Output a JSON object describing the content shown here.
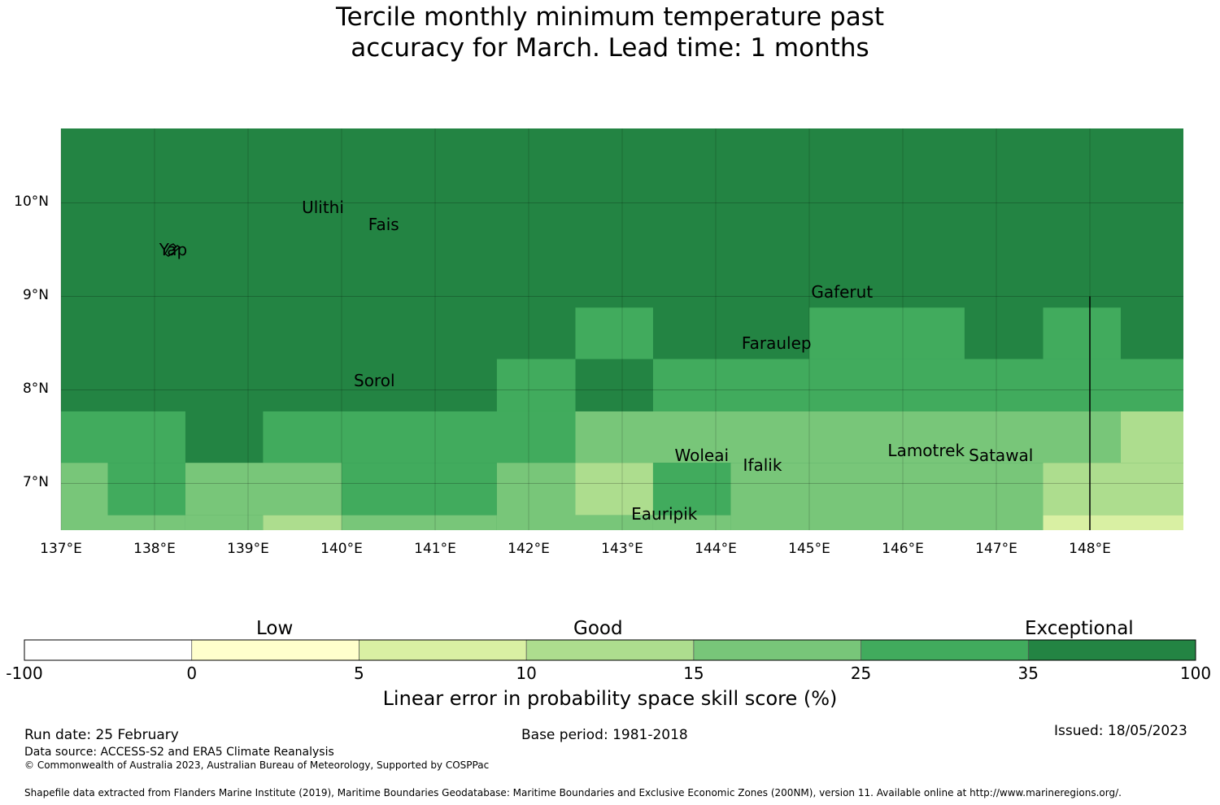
{
  "title": {
    "line1": "Tercile monthly minimum temperature past",
    "line2": "accuracy for March. Lead time: 1 months"
  },
  "map": {
    "lon_range": [
      137,
      149
    ],
    "lat_range": [
      6.5,
      10.8
    ],
    "lat_ticks": [
      {
        "value": 10,
        "label": "10°N"
      },
      {
        "value": 9,
        "label": "9°N"
      },
      {
        "value": 8,
        "label": "8°N"
      },
      {
        "value": 7,
        "label": "7°N"
      }
    ],
    "lon_ticks": [
      {
        "value": 137,
        "label": "137°E"
      },
      {
        "value": 138,
        "label": "138°E"
      },
      {
        "value": 139,
        "label": "139°E"
      },
      {
        "value": 140,
        "label": "140°E"
      },
      {
        "value": 141,
        "label": "141°E"
      },
      {
        "value": 142,
        "label": "142°E"
      },
      {
        "value": 143,
        "label": "143°E"
      },
      {
        "value": 144,
        "label": "144°E"
      },
      {
        "value": 145,
        "label": "145°E"
      },
      {
        "value": 146,
        "label": "146°E"
      },
      {
        "value": 147,
        "label": "147°E"
      },
      {
        "value": 148,
        "label": "148°E"
      }
    ],
    "background_class": 6,
    "cells": [
      {
        "lon0": 142.5,
        "lon1": 143.33,
        "lat0": 8.33,
        "lat1": 8.88,
        "class": 5
      },
      {
        "lon0": 145.0,
        "lon1": 146.66,
        "lat0": 8.33,
        "lat1": 8.88,
        "class": 5
      },
      {
        "lon0": 147.5,
        "lon1": 148.33,
        "lat0": 8.33,
        "lat1": 8.88,
        "class": 5
      },
      {
        "lon0": 141.66,
        "lon1": 142.5,
        "lat0": 7.77,
        "lat1": 8.33,
        "class": 5
      },
      {
        "lon0": 143.33,
        "lon1": 149.0,
        "lat0": 7.77,
        "lat1": 8.33,
        "class": 5
      },
      {
        "lon0": 137.0,
        "lon1": 138.33,
        "lat0": 7.22,
        "lat1": 7.77,
        "class": 5
      },
      {
        "lon0": 139.16,
        "lon1": 142.5,
        "lat0": 7.22,
        "lat1": 7.77,
        "class": 5
      },
      {
        "lon0": 142.5,
        "lon1": 148.33,
        "lat0": 7.22,
        "lat1": 7.77,
        "class": 4
      },
      {
        "lon0": 148.33,
        "lon1": 149.0,
        "lat0": 7.22,
        "lat1": 7.77,
        "class": 3
      },
      {
        "lon0": 137.0,
        "lon1": 137.5,
        "lat0": 6.5,
        "lat1": 7.22,
        "class": 4
      },
      {
        "lon0": 137.5,
        "lon1": 138.33,
        "lat0": 6.66,
        "lat1": 7.22,
        "class": 5
      },
      {
        "lon0": 137.5,
        "lon1": 138.33,
        "lat0": 6.5,
        "lat1": 6.66,
        "class": 4
      },
      {
        "lon0": 138.33,
        "lon1": 140.0,
        "lat0": 6.66,
        "lat1": 7.22,
        "class": 4
      },
      {
        "lon0": 138.33,
        "lon1": 139.16,
        "lat0": 6.5,
        "lat1": 6.66,
        "class": 4
      },
      {
        "lon0": 139.16,
        "lon1": 140.0,
        "lat0": 6.5,
        "lat1": 6.66,
        "class": 3
      },
      {
        "lon0": 140.0,
        "lon1": 141.66,
        "lat0": 6.66,
        "lat1": 7.22,
        "class": 5
      },
      {
        "lon0": 140.0,
        "lon1": 141.66,
        "lat0": 6.5,
        "lat1": 6.66,
        "class": 4
      },
      {
        "lon0": 141.66,
        "lon1": 142.5,
        "lat0": 6.5,
        "lat1": 7.22,
        "class": 4
      },
      {
        "lon0": 142.5,
        "lon1": 143.33,
        "lat0": 6.66,
        "lat1": 7.22,
        "class": 3
      },
      {
        "lon0": 142.5,
        "lon1": 143.33,
        "lat0": 6.5,
        "lat1": 6.66,
        "class": 4
      },
      {
        "lon0": 143.33,
        "lon1": 144.16,
        "lat0": 6.66,
        "lat1": 7.22,
        "class": 5
      },
      {
        "lon0": 143.33,
        "lon1": 144.16,
        "lat0": 6.5,
        "lat1": 6.66,
        "class": 4
      },
      {
        "lon0": 144.16,
        "lon1": 147.5,
        "lat0": 6.5,
        "lat1": 7.22,
        "class": 4
      },
      {
        "lon0": 147.5,
        "lon1": 149.0,
        "lat0": 6.66,
        "lat1": 7.22,
        "class": 3
      },
      {
        "lon0": 147.5,
        "lon1": 149.0,
        "lat0": 6.5,
        "lat1": 6.66,
        "class": 2
      }
    ],
    "boundary_line": {
      "lon": 148.0,
      "lat0": 6.5,
      "lat1": 9.0
    },
    "places": [
      {
        "name": "Ulithi",
        "lon": 139.8,
        "lat": 9.95
      },
      {
        "name": "Fais",
        "lon": 140.45,
        "lat": 9.77
      },
      {
        "name": "Yap",
        "lon": 138.2,
        "lat": 9.5
      },
      {
        "name": "Gaferut",
        "lon": 145.35,
        "lat": 9.05
      },
      {
        "name": "Faraulep",
        "lon": 144.65,
        "lat": 8.5
      },
      {
        "name": "Sorol",
        "lon": 140.35,
        "lat": 8.1
      },
      {
        "name": "Woleai",
        "lon": 143.85,
        "lat": 7.3
      },
      {
        "name": "Ifalik",
        "lon": 144.5,
        "lat": 7.2
      },
      {
        "name": "Lamotrek",
        "lon": 146.25,
        "lat": 7.35
      },
      {
        "name": "Satawal",
        "lon": 147.05,
        "lat": 7.3
      },
      {
        "name": "Eauripik",
        "lon": 143.45,
        "lat": 6.67
      }
    ]
  },
  "colorbar": {
    "colors": [
      "#ffffff",
      "#ffffcc",
      "#d9f0a3",
      "#addd8e",
      "#78c679",
      "#41ab5d",
      "#238443"
    ],
    "ticks": [
      "-100",
      "0",
      "5",
      "10",
      "15",
      "25",
      "35",
      "100"
    ],
    "categories": {
      "low": "Low",
      "good": "Good",
      "exceptional": "Exceptional"
    },
    "label": "Linear error in probability space skill score (%)"
  },
  "footer": {
    "run_date": "Run date: 25 February",
    "base_period": "Base period: 1981-2018",
    "issued": "Issued: 18/05/2023",
    "data_source": "Data source: ACCESS-S2 and ERA5 Climate Reanalysis",
    "copyright": "© Commonwealth of Australia 2023, Australian Bureau of Meteorology, Supported by COSPPac",
    "shapefile": "Shapefile data extracted from Flanders Marine Institute (2019), Maritime Boundaries Geodatabase: Maritime Boundaries and Exclusive Economic Zones (200NM), version 11. Available online at http://www.marineregions.org/."
  }
}
